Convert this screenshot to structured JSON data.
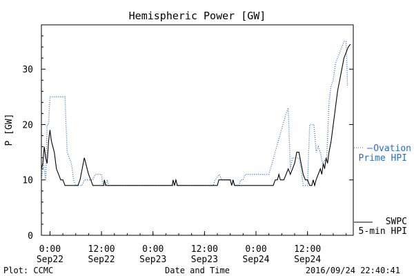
{
  "chart_data": {
    "type": "line",
    "title": "Hemispheric Power [GW]",
    "xlabel": "Date and Time",
    "ylabel": "P [GW]",
    "ylim": [
      0,
      38
    ],
    "yticks": [
      0,
      10,
      20,
      30
    ],
    "xlim": [
      "2016-09-21T22:00",
      "2016-09-24T22:40"
    ],
    "xticks": [
      {
        "time": "2016-09-22T00:00",
        "label": [
          "0:00",
          "Sep22"
        ]
      },
      {
        "time": "2016-09-22T12:00",
        "label": [
          "12:00",
          "Sep22"
        ]
      },
      {
        "time": "2016-09-23T00:00",
        "label": [
          "0:00",
          "Sep23"
        ]
      },
      {
        "time": "2016-09-23T12:00",
        "label": [
          "12:00",
          "Sep23"
        ]
      },
      {
        "time": "2016-09-24T00:00",
        "label": [
          "0:00",
          "Sep24"
        ]
      },
      {
        "time": "2016-09-24T12:00",
        "label": [
          "12:00",
          "Sep24"
        ]
      }
    ],
    "grid": false,
    "legend_position": "right",
    "series": [
      {
        "name": "Ovation Prime HPI",
        "color": "#2a6bd1",
        "style": "dotted",
        "points": [
          [
            "2016-09-21T22:00",
            10
          ],
          [
            "2016-09-21T22:30",
            13
          ],
          [
            "2016-09-21T23:00",
            10
          ],
          [
            "2016-09-21T23:20",
            20
          ],
          [
            "2016-09-21T23:40",
            20
          ],
          [
            "2016-09-22T00:00",
            25
          ],
          [
            "2016-09-22T03:30",
            25
          ],
          [
            "2016-09-22T04:00",
            15
          ],
          [
            "2016-09-22T05:00",
            13
          ],
          [
            "2016-09-22T05:30",
            10
          ],
          [
            "2016-09-22T06:00",
            9
          ],
          [
            "2016-09-22T07:30",
            9
          ],
          [
            "2016-09-22T08:00",
            10
          ],
          [
            "2016-09-22T10:00",
            10
          ],
          [
            "2016-09-22T10:30",
            11
          ],
          [
            "2016-09-22T12:00",
            11
          ],
          [
            "2016-09-22T12:20",
            9
          ],
          [
            "2016-09-22T13:00",
            9
          ],
          [
            "2016-09-22T13:20",
            10
          ],
          [
            "2016-09-22T13:40",
            9
          ],
          [
            "2016-09-23T14:00",
            9
          ],
          [
            "2016-09-23T14:30",
            10
          ],
          [
            "2016-09-23T15:30",
            11
          ],
          [
            "2016-09-23T16:00",
            10
          ],
          [
            "2016-09-23T18:30",
            10
          ],
          [
            "2016-09-23T19:00",
            9
          ],
          [
            "2016-09-23T20:00",
            9
          ],
          [
            "2016-09-23T20:30",
            10
          ],
          [
            "2016-09-23T21:00",
            10
          ],
          [
            "2016-09-23T21:30",
            11
          ],
          [
            "2016-09-24T03:00",
            11
          ],
          [
            "2016-09-24T07:00",
            22
          ],
          [
            "2016-09-24T07:30",
            23
          ],
          [
            "2016-09-24T08:00",
            12
          ],
          [
            "2016-09-24T08:30",
            14
          ],
          [
            "2016-09-24T10:00",
            14
          ],
          [
            "2016-09-24T10:30",
            12
          ],
          [
            "2016-09-24T11:00",
            9
          ],
          [
            "2016-09-24T12:00",
            9
          ],
          [
            "2016-09-24T12:30",
            20
          ],
          [
            "2016-09-24T13:30",
            20
          ],
          [
            "2016-09-24T14:00",
            15
          ],
          [
            "2016-09-24T14:30",
            16
          ],
          [
            "2016-09-24T15:00",
            15
          ],
          [
            "2016-09-24T15:30",
            13
          ],
          [
            "2016-09-24T16:30",
            14
          ],
          [
            "2016-09-24T17:00",
            24
          ],
          [
            "2016-09-24T17:30",
            27
          ],
          [
            "2016-09-24T18:00",
            28
          ],
          [
            "2016-09-24T18:30",
            31
          ],
          [
            "2016-09-24T19:00",
            32
          ],
          [
            "2016-09-24T19:30",
            33
          ],
          [
            "2016-09-24T20:00",
            34
          ],
          [
            "2016-09-24T20:30",
            35
          ],
          [
            "2016-09-24T21:00",
            35
          ],
          [
            "2016-09-24T21:20",
            27
          ]
        ]
      },
      {
        "name": "SWPC 5-min HPI",
        "color": "#000000",
        "style": "solid",
        "points": [
          [
            "2016-09-21T22:00",
            12
          ],
          [
            "2016-09-21T22:20",
            13
          ],
          [
            "2016-09-21T22:40",
            16
          ],
          [
            "2016-09-21T23:00",
            14
          ],
          [
            "2016-09-21T23:20",
            13
          ],
          [
            "2016-09-21T23:40",
            17
          ],
          [
            "2016-09-22T00:00",
            19
          ],
          [
            "2016-09-22T00:20",
            17
          ],
          [
            "2016-09-22T01:00",
            15
          ],
          [
            "2016-09-22T01:30",
            12
          ],
          [
            "2016-09-22T02:00",
            11
          ],
          [
            "2016-09-22T02:30",
            10
          ],
          [
            "2016-09-22T03:00",
            10
          ],
          [
            "2016-09-22T03:30",
            9
          ],
          [
            "2016-09-22T06:30",
            9
          ],
          [
            "2016-09-22T07:00",
            10
          ],
          [
            "2016-09-22T07:30",
            12
          ],
          [
            "2016-09-22T08:00",
            14
          ],
          [
            "2016-09-22T08:20",
            13
          ],
          [
            "2016-09-22T08:40",
            12
          ],
          [
            "2016-09-22T09:00",
            11
          ],
          [
            "2016-09-22T09:30",
            10
          ],
          [
            "2016-09-22T10:00",
            9
          ],
          [
            "2016-09-22T12:30",
            9
          ],
          [
            "2016-09-22T12:40",
            10
          ],
          [
            "2016-09-22T13:00",
            9
          ],
          [
            "2016-09-23T04:30",
            9
          ],
          [
            "2016-09-23T04:40",
            10
          ],
          [
            "2016-09-23T05:00",
            9
          ],
          [
            "2016-09-23T05:20",
            10
          ],
          [
            "2016-09-23T05:40",
            9
          ],
          [
            "2016-09-23T15:00",
            9
          ],
          [
            "2016-09-23T15:20",
            10
          ],
          [
            "2016-09-23T18:00",
            10
          ],
          [
            "2016-09-23T18:20",
            9
          ],
          [
            "2016-09-23T18:40",
            10
          ],
          [
            "2016-09-23T19:00",
            9
          ],
          [
            "2016-09-24T04:00",
            9
          ],
          [
            "2016-09-24T04:30",
            10
          ],
          [
            "2016-09-24T05:00",
            10
          ],
          [
            "2016-09-24T05:20",
            11
          ],
          [
            "2016-09-24T05:40",
            10
          ],
          [
            "2016-09-24T06:30",
            10
          ],
          [
            "2016-09-24T07:00",
            11
          ],
          [
            "2016-09-24T07:30",
            12
          ],
          [
            "2016-09-24T08:00",
            11
          ],
          [
            "2016-09-24T08:30",
            12
          ],
          [
            "2016-09-24T09:00",
            13
          ],
          [
            "2016-09-24T09:30",
            15
          ],
          [
            "2016-09-24T10:00",
            15
          ],
          [
            "2016-09-24T10:30",
            13
          ],
          [
            "2016-09-24T11:00",
            11
          ],
          [
            "2016-09-24T11:30",
            10
          ],
          [
            "2016-09-24T12:00",
            10
          ],
          [
            "2016-09-24T12:30",
            9
          ],
          [
            "2016-09-24T13:00",
            9
          ],
          [
            "2016-09-24T13:20",
            10
          ],
          [
            "2016-09-24T13:40",
            9
          ],
          [
            "2016-09-24T14:00",
            10
          ],
          [
            "2016-09-24T14:30",
            11
          ],
          [
            "2016-09-24T15:00",
            12
          ],
          [
            "2016-09-24T15:20",
            11
          ],
          [
            "2016-09-24T15:40",
            13
          ],
          [
            "2016-09-24T16:00",
            12
          ],
          [
            "2016-09-24T16:20",
            14
          ],
          [
            "2016-09-24T16:40",
            13
          ],
          [
            "2016-09-24T17:00",
            15
          ],
          [
            "2016-09-24T17:30",
            17
          ],
          [
            "2016-09-24T18:00",
            20
          ],
          [
            "2016-09-24T18:30",
            23
          ],
          [
            "2016-09-24T19:00",
            26
          ],
          [
            "2016-09-24T19:30",
            28
          ],
          [
            "2016-09-24T20:00",
            30
          ],
          [
            "2016-09-24T20:30",
            32
          ],
          [
            "2016-09-24T21:00",
            33
          ],
          [
            "2016-09-24T21:30",
            34
          ],
          [
            "2016-09-24T22:00",
            34.5
          ]
        ]
      }
    ]
  },
  "legend": {
    "ovation": {
      "line1": "Ovation",
      "line2": "Prime HPI"
    },
    "swpc": {
      "line1": "SWPC",
      "line2": "5-min HPI"
    }
  },
  "footer": {
    "left": "Plot: CCMC",
    "center": "Date and Time",
    "right": "2016/09/24 22:40:41"
  }
}
